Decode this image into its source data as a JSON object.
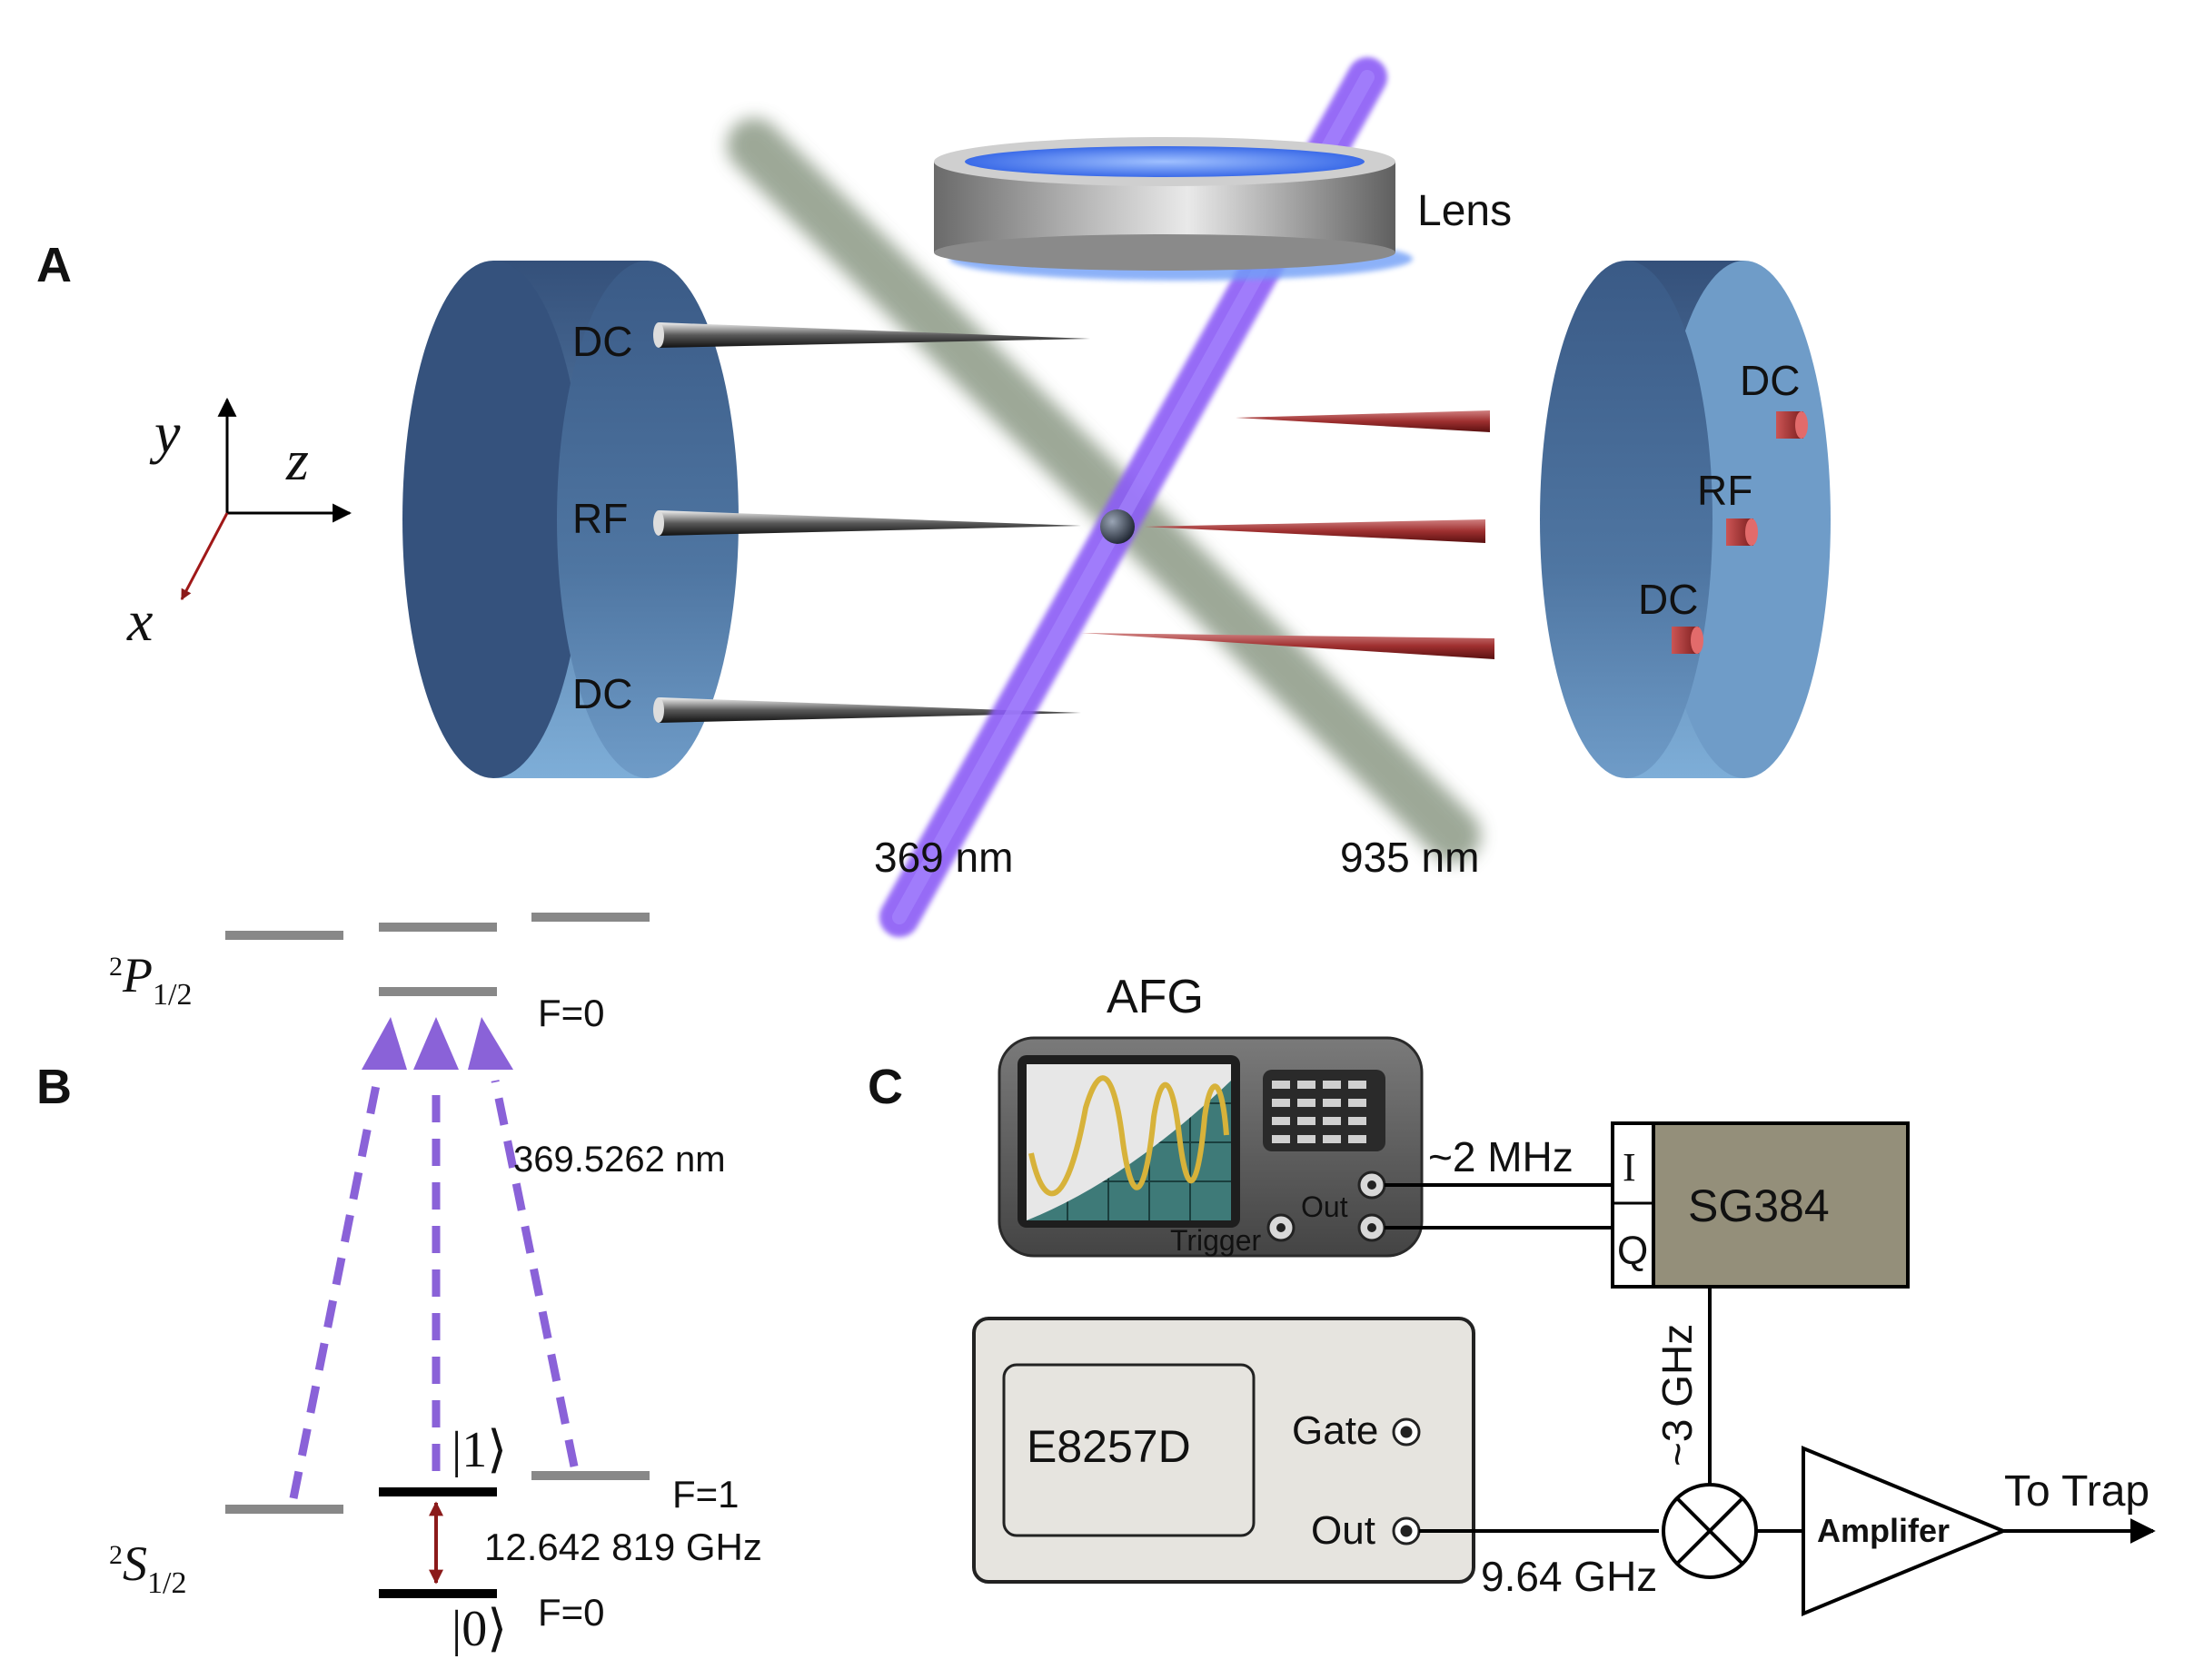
{
  "panel_a": {
    "panel_label": "A",
    "lens_label": "Lens",
    "left_electrodes": [
      "DC",
      "RF",
      "DC"
    ],
    "right_electrodes": [
      "DC",
      "RF",
      "DC"
    ],
    "axes": {
      "x": "x",
      "y": "y",
      "z": "z"
    },
    "beam_violet_label": "369 nm",
    "beam_green_label": "935 nm",
    "colors": {
      "disk": "#4a6f98",
      "violet_beam": "#8b5cf6",
      "green_beam": "#8c9a86",
      "red_needle": "#a33b3b",
      "lens_glow": "#4f7df0"
    }
  },
  "panel_b": {
    "panel_label": "B",
    "p_state": {
      "sup": "2",
      "letter": "P",
      "sub": "1/2"
    },
    "s_state": {
      "sup": "2",
      "letter": "S",
      "sub": "1/2"
    },
    "p_f0": "F=0",
    "s_f1": "F=1",
    "s_f0": "F=0",
    "ket_one": "|1⟩",
    "ket_zero": "|0⟩",
    "wavelength": "369.5262 nm",
    "hyperfine": "12.642 819 GHz",
    "colors": {
      "arrow": "#8a62d8",
      "level": "#888888",
      "qubit": "#000000",
      "split_arrow": "#8b1a1a"
    }
  },
  "panel_c": {
    "panel_label": "C",
    "afg_label": "AFG",
    "afg_out": "Out",
    "afg_trigger": "Trigger",
    "freq_mhz": "~2 MHz",
    "sg_label": "SG384",
    "port_i": "I",
    "port_q": "Q",
    "freq_3ghz": "~3 GHz",
    "e8257_label": "E8257D",
    "gate_label": "Gate",
    "out_label": "Out",
    "freq_964": "9.64 GHz",
    "amp_label": "Amplifer",
    "to_trap": "To Trap",
    "colors": {
      "sg_box": "#948f7a",
      "e8257_box": "#e6e4df",
      "afg_body": "#5c5c5c",
      "screen": "#3e7a78",
      "wave": "#d7b23a"
    }
  }
}
